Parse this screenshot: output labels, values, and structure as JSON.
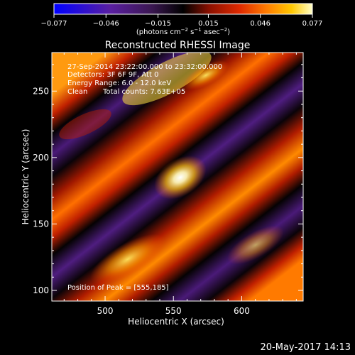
{
  "chart_data": {
    "type": "heatmap",
    "title": "Reconstructed RHESSI Image",
    "xlabel": "Heliocentric X (arcsec)",
    "ylabel": "Heliocentric Y (arcsec)",
    "xlim": [
      461,
      645
    ],
    "ylim": [
      92,
      279
    ],
    "x_ticks": [
      "500",
      "550",
      "600"
    ],
    "x_tick_values": [
      500,
      550,
      600
    ],
    "y_ticks": [
      "100",
      "150",
      "200",
      "250"
    ],
    "y_tick_values": [
      100,
      150,
      200,
      250
    ],
    "colorbar": {
      "min": -0.077,
      "max": 0.077,
      "tick_labels": [
        "−0.077",
        "−0.046",
        "−0.015",
        "0.015",
        "0.046",
        "0.077"
      ],
      "tick_values": [
        -0.077,
        -0.046,
        -0.015,
        0.015,
        0.046,
        0.077
      ],
      "unit_parts": [
        "(photons cm",
        "−2",
        " s",
        "−1",
        " asec",
        "−2",
        ")"
      ],
      "colormap": [
        "#0000ff",
        "#5a1fa0",
        "#3a1750",
        "#000000",
        "#8a1000",
        "#e02a00",
        "#ff7a00",
        "#ffc800",
        "#ffffc8"
      ]
    },
    "annotations": {
      "time_range": "27‐Sep‐2014 23:22:00.000 to 23:32:00.000",
      "detectors": "Detectors: 3F 6F 9F, Att 0",
      "energy_range": "Energy Range: 6.0 ‐ 12.0 keV",
      "clean_label": "Clean",
      "total_counts": "Total counts: 7.63E+05",
      "peak_position": "Position of Peak = [555,185]"
    },
    "peak": {
      "x": 555,
      "y": 185
    },
    "grid": false
  },
  "footer": {
    "timestamp": "20‐May‐2017 14:13"
  }
}
